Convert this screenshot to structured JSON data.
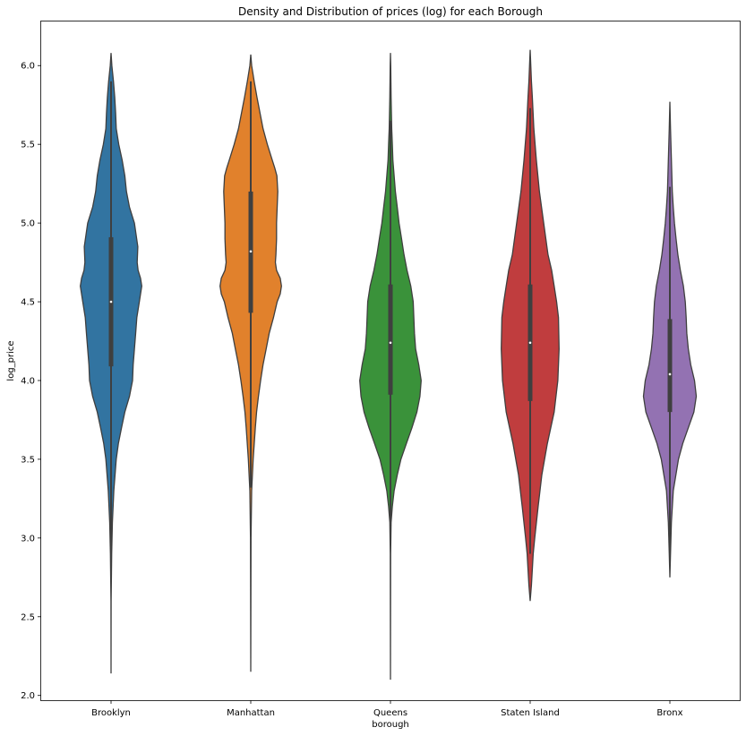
{
  "chart_data": {
    "type": "violin",
    "title": "Density and Distribution of prices (log) for each Borough",
    "xlabel": "borough",
    "ylabel": "log_price",
    "ylim": [
      1.97,
      6.28
    ],
    "yticks": [
      2.0,
      2.5,
      3.0,
      3.5,
      4.0,
      4.5,
      5.0,
      5.5,
      6.0
    ],
    "ytick_labels": [
      "2.0",
      "2.5",
      "3.0",
      "3.5",
      "4.0",
      "4.5",
      "5.0",
      "5.5",
      "6.0"
    ],
    "categories": [
      "Brooklyn",
      "Manhattan",
      "Queens",
      "Staten Island",
      "Bronx"
    ],
    "grid": false,
    "violins": [
      {
        "category": "Brooklyn",
        "color": "#3274a1",
        "min": 2.14,
        "max": 6.08,
        "q1": 4.09,
        "median": 4.5,
        "q3": 4.91,
        "whisker_low": 2.89,
        "whisker_high": 5.9,
        "density": [
          [
            2.14,
            0.0
          ],
          [
            2.6,
            0.004
          ],
          [
            2.9,
            0.02
          ],
          [
            3.1,
            0.045
          ],
          [
            3.3,
            0.09
          ],
          [
            3.5,
            0.17
          ],
          [
            3.6,
            0.24
          ],
          [
            3.7,
            0.34
          ],
          [
            3.8,
            0.45
          ],
          [
            3.9,
            0.6
          ],
          [
            4.0,
            0.7
          ],
          [
            4.1,
            0.72
          ],
          [
            4.2,
            0.76
          ],
          [
            4.3,
            0.8
          ],
          [
            4.4,
            0.84
          ],
          [
            4.5,
            0.92
          ],
          [
            4.6,
            1.0
          ],
          [
            4.65,
            0.96
          ],
          [
            4.7,
            0.88
          ],
          [
            4.75,
            0.85
          ],
          [
            4.85,
            0.87
          ],
          [
            5.0,
            0.76
          ],
          [
            5.1,
            0.6
          ],
          [
            5.2,
            0.5
          ],
          [
            5.3,
            0.45
          ],
          [
            5.4,
            0.36
          ],
          [
            5.5,
            0.25
          ],
          [
            5.6,
            0.17
          ],
          [
            5.7,
            0.15
          ],
          [
            5.8,
            0.12
          ],
          [
            5.9,
            0.08
          ],
          [
            6.0,
            0.025
          ],
          [
            6.08,
            0.0
          ]
        ]
      },
      {
        "category": "Manhattan",
        "color": "#e1812c",
        "min": 2.15,
        "max": 6.07,
        "q1": 4.43,
        "median": 4.82,
        "q3": 5.2,
        "whisker_low": 3.32,
        "whisker_high": 5.9,
        "density": [
          [
            2.15,
            0.0
          ],
          [
            3.0,
            0.01
          ],
          [
            3.3,
            0.03
          ],
          [
            3.5,
            0.08
          ],
          [
            3.7,
            0.15
          ],
          [
            3.8,
            0.19
          ],
          [
            3.9,
            0.25
          ],
          [
            4.0,
            0.32
          ],
          [
            4.1,
            0.4
          ],
          [
            4.2,
            0.5
          ],
          [
            4.3,
            0.6
          ],
          [
            4.4,
            0.74
          ],
          [
            4.5,
            0.86
          ],
          [
            4.55,
            0.96
          ],
          [
            4.6,
            1.0
          ],
          [
            4.65,
            0.96
          ],
          [
            4.7,
            0.84
          ],
          [
            4.75,
            0.8
          ],
          [
            4.8,
            0.82
          ],
          [
            4.9,
            0.84
          ],
          [
            5.0,
            0.84
          ],
          [
            5.1,
            0.86
          ],
          [
            5.2,
            0.88
          ],
          [
            5.3,
            0.85
          ],
          [
            5.35,
            0.78
          ],
          [
            5.4,
            0.7
          ],
          [
            5.5,
            0.54
          ],
          [
            5.6,
            0.4
          ],
          [
            5.7,
            0.3
          ],
          [
            5.8,
            0.2
          ],
          [
            5.9,
            0.11
          ],
          [
            6.0,
            0.03
          ],
          [
            6.07,
            0.0
          ]
        ]
      },
      {
        "category": "Queens",
        "color": "#3a923a",
        "min": 2.1,
        "max": 6.08,
        "q1": 3.91,
        "median": 4.24,
        "q3": 4.61,
        "whisker_low": 3.08,
        "whisker_high": 5.65,
        "density": [
          [
            2.1,
            0.0
          ],
          [
            2.9,
            0.005
          ],
          [
            3.1,
            0.02
          ],
          [
            3.2,
            0.06
          ],
          [
            3.3,
            0.12
          ],
          [
            3.4,
            0.22
          ],
          [
            3.5,
            0.34
          ],
          [
            3.6,
            0.52
          ],
          [
            3.7,
            0.7
          ],
          [
            3.8,
            0.86
          ],
          [
            3.9,
            0.96
          ],
          [
            4.0,
            1.0
          ],
          [
            4.1,
            0.92
          ],
          [
            4.2,
            0.82
          ],
          [
            4.3,
            0.78
          ],
          [
            4.4,
            0.76
          ],
          [
            4.5,
            0.74
          ],
          [
            4.6,
            0.66
          ],
          [
            4.7,
            0.54
          ],
          [
            4.8,
            0.44
          ],
          [
            4.9,
            0.36
          ],
          [
            5.0,
            0.28
          ],
          [
            5.1,
            0.22
          ],
          [
            5.2,
            0.16
          ],
          [
            5.3,
            0.12
          ],
          [
            5.4,
            0.08
          ],
          [
            5.5,
            0.06
          ],
          [
            5.6,
            0.04
          ],
          [
            5.8,
            0.02
          ],
          [
            6.0,
            0.008
          ],
          [
            6.08,
            0.0
          ]
        ]
      },
      {
        "category": "Staten Island",
        "color": "#c03d3e",
        "min": 2.6,
        "max": 6.1,
        "q1": 3.87,
        "median": 4.24,
        "q3": 4.61,
        "whisker_low": 2.9,
        "whisker_high": 5.73,
        "density": [
          [
            2.6,
            0.0
          ],
          [
            2.7,
            0.04
          ],
          [
            2.9,
            0.1
          ],
          [
            3.0,
            0.15
          ],
          [
            3.2,
            0.26
          ],
          [
            3.4,
            0.38
          ],
          [
            3.6,
            0.56
          ],
          [
            3.8,
            0.78
          ],
          [
            4.0,
            0.9
          ],
          [
            4.2,
            0.94
          ],
          [
            4.4,
            0.92
          ],
          [
            4.5,
            0.86
          ],
          [
            4.6,
            0.78
          ],
          [
            4.7,
            0.7
          ],
          [
            4.8,
            0.58
          ],
          [
            5.0,
            0.44
          ],
          [
            5.2,
            0.3
          ],
          [
            5.4,
            0.2
          ],
          [
            5.6,
            0.12
          ],
          [
            5.8,
            0.07
          ],
          [
            5.9,
            0.04
          ],
          [
            6.0,
            0.02
          ],
          [
            6.1,
            0.0
          ]
        ]
      },
      {
        "category": "Bronx",
        "color": "#9372b2",
        "min": 2.75,
        "max": 5.77,
        "q1": 3.8,
        "median": 4.04,
        "q3": 4.39,
        "whisker_low": 2.9,
        "whisker_high": 5.23,
        "density": [
          [
            2.75,
            0.0
          ],
          [
            2.9,
            0.02
          ],
          [
            3.1,
            0.05
          ],
          [
            3.3,
            0.11
          ],
          [
            3.5,
            0.28
          ],
          [
            3.6,
            0.42
          ],
          [
            3.7,
            0.6
          ],
          [
            3.8,
            0.78
          ],
          [
            3.9,
            0.86
          ],
          [
            4.0,
            0.8
          ],
          [
            4.1,
            0.68
          ],
          [
            4.2,
            0.6
          ],
          [
            4.3,
            0.55
          ],
          [
            4.4,
            0.53
          ],
          [
            4.5,
            0.5
          ],
          [
            4.6,
            0.44
          ],
          [
            4.7,
            0.34
          ],
          [
            4.8,
            0.26
          ],
          [
            4.9,
            0.2
          ],
          [
            5.0,
            0.15
          ],
          [
            5.1,
            0.11
          ],
          [
            5.2,
            0.08
          ],
          [
            5.4,
            0.05
          ],
          [
            5.6,
            0.02
          ],
          [
            5.77,
            0.0
          ]
        ]
      }
    ]
  }
}
